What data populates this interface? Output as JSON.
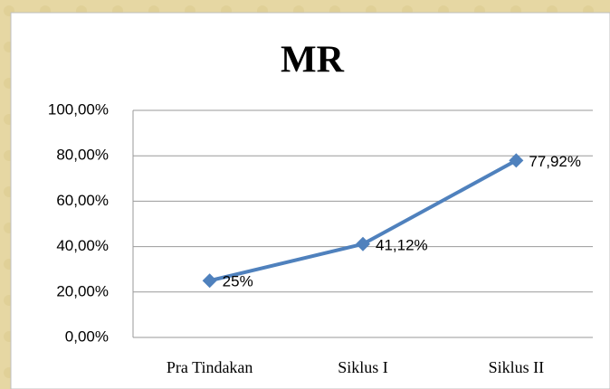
{
  "chart_data": {
    "type": "line",
    "title": "MR",
    "categories": [
      "Pra Tindakan",
      "Siklus I",
      "Siklus II"
    ],
    "series": [
      {
        "name": "MR",
        "color": "#4f81bd",
        "values": [
          25,
          41.12,
          77.92
        ],
        "value_labels": [
          "25%",
          "41,12%",
          "77,92%"
        ]
      }
    ],
    "ylim": [
      0,
      100
    ],
    "yticks": [
      {
        "value": 0,
        "label": "0,00%"
      },
      {
        "value": 20,
        "label": "20,00%"
      },
      {
        "value": 40,
        "label": "40,00%"
      },
      {
        "value": 60,
        "label": "60,00%"
      },
      {
        "value": 80,
        "label": "80,00%"
      },
      {
        "value": 100,
        "label": "100,00%"
      }
    ],
    "grid": true
  }
}
